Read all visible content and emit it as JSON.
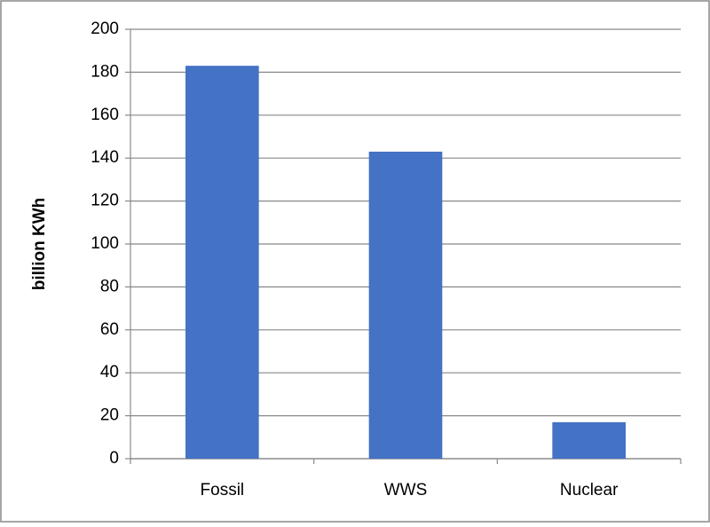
{
  "chart_data": {
    "type": "bar",
    "y_label": "billion KWh",
    "categories": [
      "Fossil",
      "WWS",
      "Nuclear"
    ],
    "values": [
      183,
      143,
      17
    ],
    "color": "#4472c4",
    "ylim": [
      0,
      200
    ],
    "yticks": [
      0,
      20,
      40,
      60,
      80,
      100,
      120,
      140,
      160,
      180,
      200
    ],
    "grid": true
  }
}
